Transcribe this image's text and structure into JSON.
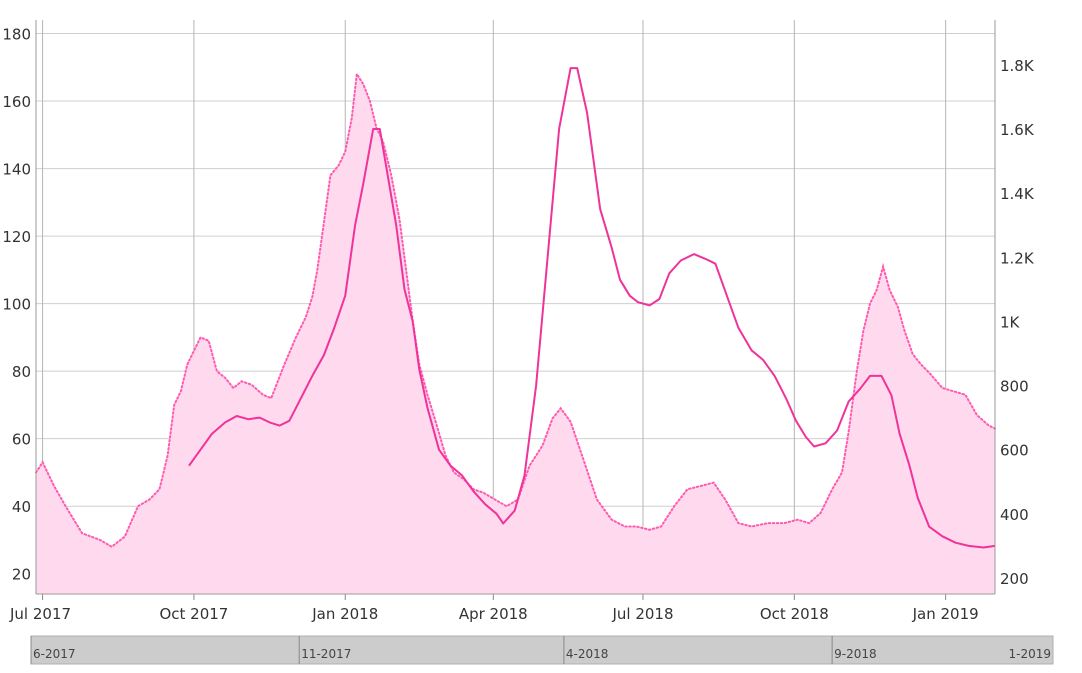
{
  "chart_data": {
    "type": "area",
    "title": "",
    "xlabel": "",
    "ylabel": "",
    "grid": true,
    "legend": "none",
    "left_axis": {
      "range": [
        14,
        184
      ],
      "ticks": [
        20,
        40,
        60,
        80,
        100,
        120,
        140,
        160,
        180
      ]
    },
    "right_axis": {
      "range": [
        150,
        1940
      ],
      "ticks": [
        200,
        400,
        600,
        800,
        1000,
        1200,
        1400,
        1600,
        1800
      ],
      "tick_labels": [
        "200",
        "400",
        "600",
        "800",
        "1K",
        "1.2K",
        "1.4K",
        "1.6K",
        "1.8K"
      ]
    },
    "x_axis": {
      "range": [
        "2017-06-27",
        "2019-01-31"
      ],
      "ticks": [
        {
          "date": "2017-07-01",
          "label": "Jul 2017"
        },
        {
          "date": "2017-10-01",
          "label": "Oct 2017"
        },
        {
          "date": "2018-01-01",
          "label": "Jan 2018"
        },
        {
          "date": "2018-04-01",
          "label": "Apr 2018"
        },
        {
          "date": "2018-07-01",
          "label": "Jul 2018"
        },
        {
          "date": "2018-10-01",
          "label": "Oct 2018"
        },
        {
          "date": "2019-01-01",
          "label": "Jan 2019"
        }
      ]
    },
    "series": [
      {
        "axis": "left",
        "style": "area-dotted",
        "color": "#ff5ab0",
        "fill": "#ffd9ee",
        "points": [
          [
            "2017-06-27",
            50
          ],
          [
            "2017-07-01",
            53
          ],
          [
            "2017-07-08",
            46
          ],
          [
            "2017-07-15",
            40
          ],
          [
            "2017-07-25",
            32
          ],
          [
            "2017-08-05",
            30
          ],
          [
            "2017-08-12",
            28
          ],
          [
            "2017-08-20",
            31
          ],
          [
            "2017-08-28",
            40
          ],
          [
            "2017-09-04",
            42
          ],
          [
            "2017-09-10",
            45
          ],
          [
            "2017-09-15",
            55
          ],
          [
            "2017-09-19",
            70
          ],
          [
            "2017-09-23",
            74
          ],
          [
            "2017-09-27",
            82
          ],
          [
            "2017-10-01",
            86
          ],
          [
            "2017-10-05",
            90
          ],
          [
            "2017-10-10",
            89
          ],
          [
            "2017-10-15",
            80
          ],
          [
            "2017-10-20",
            78
          ],
          [
            "2017-10-25",
            75
          ],
          [
            "2017-10-30",
            77
          ],
          [
            "2017-11-05",
            76
          ],
          [
            "2017-11-12",
            73
          ],
          [
            "2017-11-17",
            72
          ],
          [
            "2017-11-25",
            82
          ],
          [
            "2017-12-02",
            90
          ],
          [
            "2017-12-08",
            96
          ],
          [
            "2017-12-12",
            102
          ],
          [
            "2017-12-15",
            110
          ],
          [
            "2017-12-19",
            124
          ],
          [
            "2017-12-23",
            138
          ],
          [
            "2017-12-28",
            141
          ],
          [
            "2018-01-01",
            145
          ],
          [
            "2018-01-05",
            155
          ],
          [
            "2018-01-08",
            168
          ],
          [
            "2018-01-12",
            165
          ],
          [
            "2018-01-16",
            160
          ],
          [
            "2018-01-20",
            152
          ],
          [
            "2018-01-24",
            148
          ],
          [
            "2018-01-29",
            138
          ],
          [
            "2018-02-03",
            125
          ],
          [
            "2018-02-07",
            110
          ],
          [
            "2018-02-11",
            95
          ],
          [
            "2018-02-15",
            82
          ],
          [
            "2018-02-20",
            73
          ],
          [
            "2018-02-25",
            65
          ],
          [
            "2018-03-03",
            55
          ],
          [
            "2018-03-08",
            50
          ],
          [
            "2018-03-14",
            48
          ],
          [
            "2018-03-20",
            45
          ],
          [
            "2018-03-26",
            44
          ],
          [
            "2018-04-02",
            42
          ],
          [
            "2018-04-09",
            40
          ],
          [
            "2018-04-16",
            42
          ],
          [
            "2018-04-23",
            52
          ],
          [
            "2018-05-01",
            58
          ],
          [
            "2018-05-07",
            66
          ],
          [
            "2018-05-12",
            69
          ],
          [
            "2018-05-18",
            65
          ],
          [
            "2018-05-25",
            55
          ],
          [
            "2018-06-03",
            42
          ],
          [
            "2018-06-12",
            36
          ],
          [
            "2018-06-20",
            34
          ],
          [
            "2018-06-27",
            34
          ],
          [
            "2018-07-05",
            33
          ],
          [
            "2018-07-12",
            34
          ],
          [
            "2018-07-20",
            40
          ],
          [
            "2018-07-28",
            45
          ],
          [
            "2018-08-05",
            46
          ],
          [
            "2018-08-13",
            47
          ],
          [
            "2018-08-20",
            42
          ],
          [
            "2018-08-28",
            35
          ],
          [
            "2018-09-05",
            34
          ],
          [
            "2018-09-15",
            35
          ],
          [
            "2018-09-25",
            35
          ],
          [
            "2018-10-03",
            36
          ],
          [
            "2018-10-10",
            35
          ],
          [
            "2018-10-17",
            38
          ],
          [
            "2018-10-24",
            45
          ],
          [
            "2018-10-30",
            50
          ],
          [
            "2018-11-03",
            62
          ],
          [
            "2018-11-08",
            80
          ],
          [
            "2018-11-12",
            92
          ],
          [
            "2018-11-16",
            100
          ],
          [
            "2018-11-20",
            104
          ],
          [
            "2018-11-24",
            111
          ],
          [
            "2018-11-28",
            104
          ],
          [
            "2018-12-03",
            99
          ],
          [
            "2018-12-07",
            92
          ],
          [
            "2018-12-12",
            85
          ],
          [
            "2018-12-17",
            82
          ],
          [
            "2018-12-23",
            79
          ],
          [
            "2018-12-30",
            75
          ],
          [
            "2019-01-06",
            74
          ],
          [
            "2019-01-13",
            73
          ],
          [
            "2019-01-20",
            67
          ],
          [
            "2019-01-27",
            64
          ],
          [
            "2019-01-31",
            63
          ]
        ]
      },
      {
        "axis": "right",
        "style": "line",
        "color": "#f0339a",
        "points": [
          [
            "2017-09-28",
            550
          ],
          [
            "2017-10-05",
            600
          ],
          [
            "2017-10-12",
            650
          ],
          [
            "2017-10-20",
            685
          ],
          [
            "2017-10-27",
            705
          ],
          [
            "2017-11-03",
            695
          ],
          [
            "2017-11-10",
            700
          ],
          [
            "2017-11-16",
            685
          ],
          [
            "2017-11-22",
            675
          ],
          [
            "2017-11-28",
            690
          ],
          [
            "2017-12-05",
            760
          ],
          [
            "2017-12-12",
            830
          ],
          [
            "2017-12-19",
            895
          ],
          [
            "2017-12-25",
            975
          ],
          [
            "2018-01-01",
            1080
          ],
          [
            "2018-01-07",
            1300
          ],
          [
            "2018-01-12",
            1430
          ],
          [
            "2018-01-18",
            1600
          ],
          [
            "2018-01-22",
            1600
          ],
          [
            "2018-01-27",
            1450
          ],
          [
            "2018-02-01",
            1300
          ],
          [
            "2018-02-06",
            1100
          ],
          [
            "2018-02-11",
            1000
          ],
          [
            "2018-02-15",
            850
          ],
          [
            "2018-02-20",
            730
          ],
          [
            "2018-02-27",
            600
          ],
          [
            "2018-03-06",
            550
          ],
          [
            "2018-03-13",
            520
          ],
          [
            "2018-03-20",
            470
          ],
          [
            "2018-03-27",
            430
          ],
          [
            "2018-04-03",
            400
          ],
          [
            "2018-04-07",
            370
          ],
          [
            "2018-04-14",
            410
          ],
          [
            "2018-04-20",
            520
          ],
          [
            "2018-04-27",
            800
          ],
          [
            "2018-05-04",
            1200
          ],
          [
            "2018-05-11",
            1600
          ],
          [
            "2018-05-18",
            1790
          ],
          [
            "2018-05-22",
            1790
          ],
          [
            "2018-05-28",
            1650
          ],
          [
            "2018-06-05",
            1350
          ],
          [
            "2018-06-12",
            1230
          ],
          [
            "2018-06-17",
            1130
          ],
          [
            "2018-06-23",
            1080
          ],
          [
            "2018-06-28",
            1060
          ],
          [
            "2018-07-05",
            1050
          ],
          [
            "2018-07-11",
            1070
          ],
          [
            "2018-07-17",
            1150
          ],
          [
            "2018-07-24",
            1190
          ],
          [
            "2018-08-01",
            1210
          ],
          [
            "2018-08-08",
            1195
          ],
          [
            "2018-08-14",
            1180
          ],
          [
            "2018-08-21",
            1080
          ],
          [
            "2018-08-28",
            980
          ],
          [
            "2018-09-05",
            910
          ],
          [
            "2018-09-12",
            880
          ],
          [
            "2018-09-19",
            830
          ],
          [
            "2018-09-26",
            760
          ],
          [
            "2018-10-02",
            690
          ],
          [
            "2018-10-08",
            640
          ],
          [
            "2018-10-13",
            610
          ],
          [
            "2018-10-20",
            620
          ],
          [
            "2018-10-27",
            660
          ],
          [
            "2018-11-03",
            750
          ],
          [
            "2018-11-10",
            790
          ],
          [
            "2018-11-16",
            830
          ],
          [
            "2018-11-23",
            830
          ],
          [
            "2018-11-29",
            770
          ],
          [
            "2018-12-04",
            650
          ],
          [
            "2018-12-10",
            550
          ],
          [
            "2018-12-15",
            450
          ],
          [
            "2018-12-22",
            360
          ],
          [
            "2018-12-30",
            330
          ],
          [
            "2019-01-07",
            310
          ],
          [
            "2019-01-15",
            300
          ],
          [
            "2019-01-24",
            295
          ],
          [
            "2019-01-31",
            300
          ]
        ]
      }
    ],
    "navigator": {
      "labels": [
        {
          "date": "2017-06-27",
          "label": "6-2017"
        },
        {
          "date": "2017-11-27",
          "label": "11-2017"
        },
        {
          "date": "2018-04-27",
          "label": "4-2018"
        },
        {
          "date": "2018-09-27",
          "label": "9-2018"
        },
        {
          "date": "2019-01-31",
          "label": "1-2019"
        }
      ]
    }
  }
}
